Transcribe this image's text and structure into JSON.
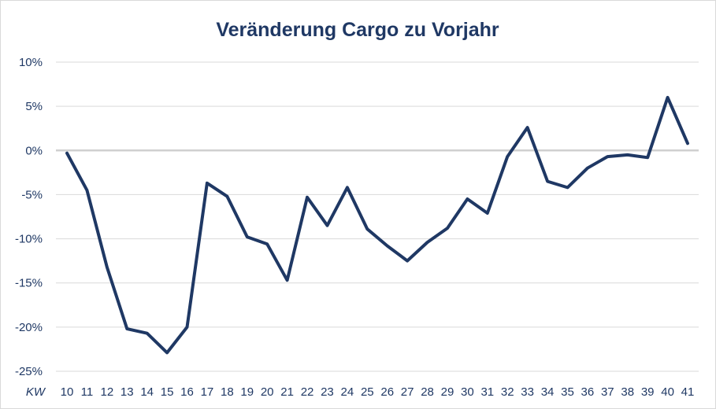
{
  "chart_data": {
    "type": "line",
    "title": "Veränderung Cargo zu Vorjahr",
    "xlabel": "KW",
    "ylabel": "",
    "categories": [
      "10",
      "11",
      "12",
      "13",
      "14",
      "15",
      "16",
      "17",
      "18",
      "19",
      "20",
      "21",
      "22",
      "23",
      "24",
      "25",
      "26",
      "27",
      "28",
      "29",
      "30",
      "31",
      "32",
      "33",
      "34",
      "35",
      "36",
      "37",
      "38",
      "39",
      "40",
      "41"
    ],
    "series": [
      {
        "values": [
          -0.3,
          -4.5,
          -13.2,
          -20.2,
          -20.7,
          -22.9,
          -20.0,
          -3.7,
          -5.2,
          -9.8,
          -10.6,
          -14.7,
          -5.3,
          -8.5,
          -4.2,
          -8.9,
          -10.8,
          -12.5,
          -10.4,
          -8.8,
          -5.5,
          -7.1,
          -0.7,
          2.6,
          -3.5,
          -4.2,
          -2.0,
          -0.7,
          -0.5,
          -0.8,
          6.0,
          0.8
        ],
        "color": "#1f3864"
      }
    ],
    "ylim": [
      -25,
      10
    ],
    "yticks": [
      "10%",
      "5%",
      "0%",
      "-5%",
      "-10%",
      "-15%",
      "-20%",
      "-25%"
    ],
    "grid": true,
    "colors": {
      "line": "#1f3864",
      "grid": "#d9d9d9",
      "zero_line": "#d0d0d0",
      "text": "#1f3864"
    }
  }
}
